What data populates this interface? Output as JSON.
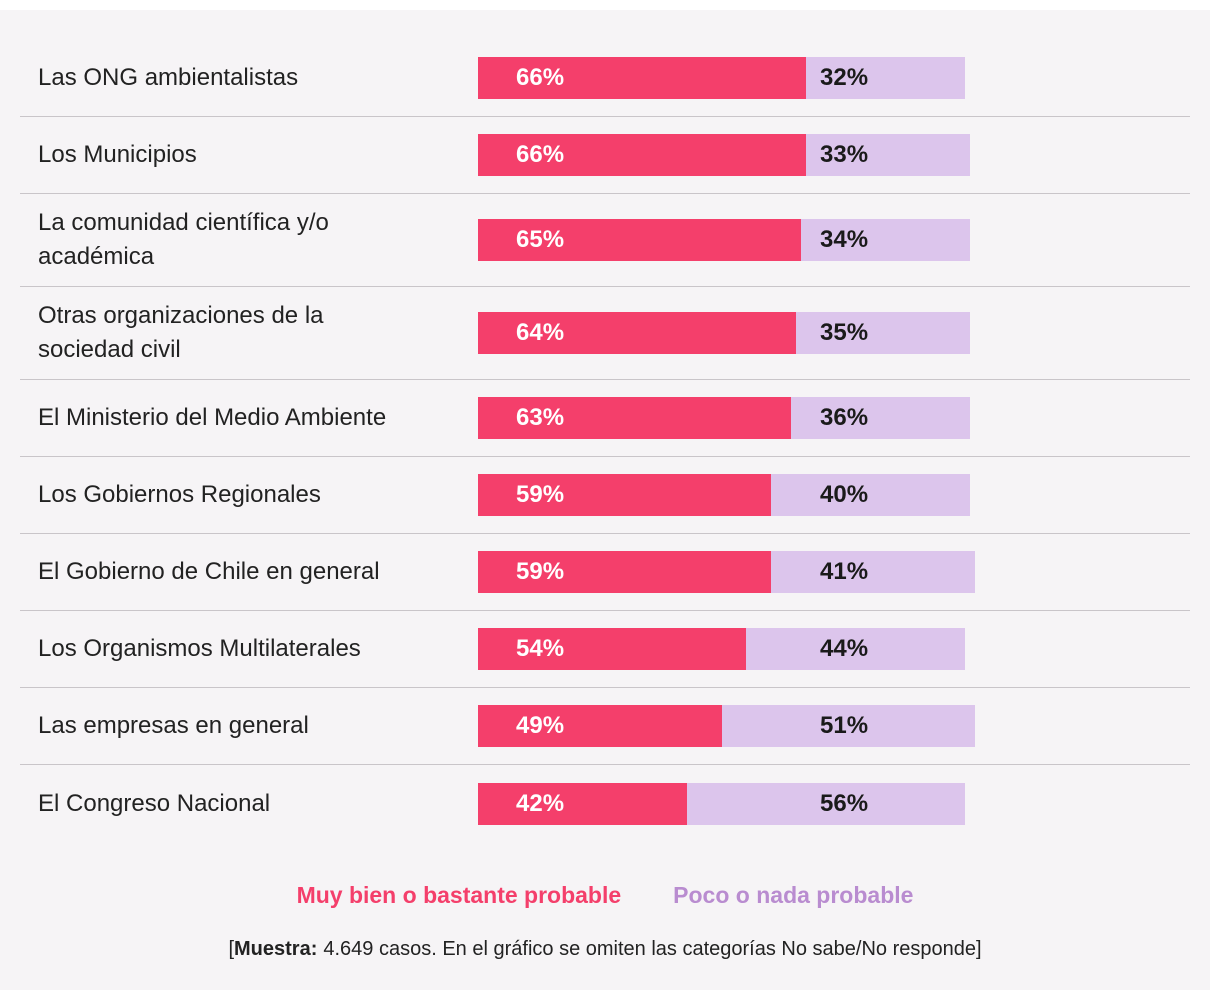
{
  "chart_data": {
    "type": "stacked-bar",
    "orientation": "horizontal",
    "categories": [
      "Las ONG ambientalistas",
      "Los Municipios",
      "La comunidad científica y/o académica",
      "Otras organizaciones de la sociedad civil",
      "El Ministerio del Medio Ambiente",
      "Los Gobiernos Regionales",
      "El Gobierno de Chile en general",
      "Los Organismos Multilaterales",
      "Las empresas en general",
      "El Congreso Nacional"
    ],
    "xlim": [
      0,
      100
    ],
    "series": [
      {
        "name": "Muy bien o bastante probable",
        "color": "#f43f6b",
        "values": [
          66,
          66,
          65,
          64,
          63,
          59,
          59,
          54,
          49,
          42
        ],
        "value_labels": [
          "66%",
          "66%",
          "65%",
          "64%",
          "63%",
          "59%",
          "59%",
          "54%",
          "49%",
          "42%"
        ]
      },
      {
        "name": "Poco o nada probable",
        "color": "#dcc5ec",
        "legend_color": "#b98cd0",
        "values": [
          32,
          33,
          34,
          35,
          36,
          40,
          41,
          44,
          51,
          56
        ],
        "value_labels": [
          "32%",
          "33%",
          "34%",
          "35%",
          "36%",
          "40%",
          "41%",
          "44%",
          "51%",
          "56%"
        ]
      }
    ],
    "note": [
      "[",
      "Muestra:",
      "4.649 casos. En el gráfico se omiten las categorías No sabe/No responde]"
    ]
  }
}
